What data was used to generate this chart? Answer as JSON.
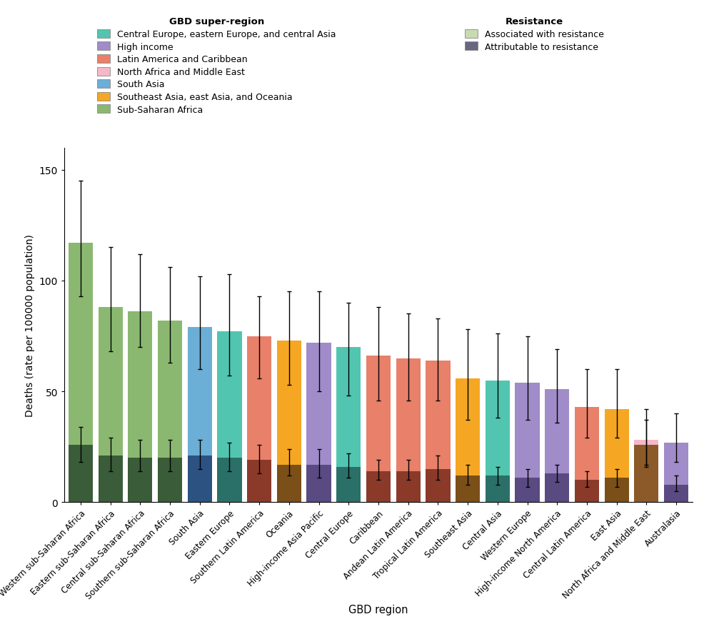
{
  "regions": [
    "Western sub-Saharan Africa",
    "Eastern sub-Saharan Africa",
    "Central sub-Saharan Africa",
    "Southern sub-Saharan Africa",
    "South Asia",
    "Eastern Europe",
    "Southern Latin America",
    "Oceania",
    "High-income Asia Pacific",
    "Central Europe",
    "Caribbean",
    "Andean Latin America",
    "Tropical Latin America",
    "Southeast Asia",
    "Central Asia",
    "Western Europe",
    "High-income North America",
    "Central Latin America",
    "East Asia",
    "North Africa and Middle East",
    "Australasia"
  ],
  "associated_values": [
    117,
    88,
    86,
    82,
    79,
    77,
    75,
    73,
    72,
    70,
    66,
    65,
    64,
    56,
    55,
    54,
    51,
    43,
    42,
    28,
    27
  ],
  "associated_lower": [
    93,
    68,
    70,
    63,
    60,
    57,
    56,
    53,
    50,
    48,
    46,
    46,
    46,
    37,
    38,
    37,
    36,
    29,
    29,
    16,
    18
  ],
  "associated_upper": [
    145,
    115,
    112,
    106,
    102,
    103,
    93,
    95,
    95,
    90,
    88,
    85,
    83,
    78,
    76,
    75,
    69,
    60,
    60,
    42,
    40
  ],
  "attributable_values": [
    26,
    21,
    20,
    20,
    21,
    20,
    19,
    17,
    17,
    16,
    14,
    14,
    15,
    12,
    12,
    11,
    13,
    10,
    11,
    26,
    8
  ],
  "attributable_lower": [
    18,
    14,
    14,
    14,
    15,
    14,
    13,
    12,
    11,
    11,
    10,
    10,
    10,
    8,
    8,
    7,
    9,
    7,
    7,
    17,
    5
  ],
  "attributable_upper": [
    34,
    29,
    28,
    28,
    28,
    27,
    26,
    24,
    24,
    22,
    19,
    19,
    21,
    17,
    16,
    15,
    17,
    14,
    15,
    37,
    12
  ],
  "super_region_colors": {
    "Sub-Saharan Africa": "#8ab870",
    "South Asia": "#6baed6",
    "Central Europe, eastern Europe, and central Asia": "#52c5b0",
    "Latin America and Caribbean": "#e8806a",
    "Southeast Asia, east Asia, and Oceania": "#f5a623",
    "High income": "#a08cc8",
    "North Africa and Middle East": "#f5b8c8"
  },
  "region_super_region": [
    "Sub-Saharan Africa",
    "Sub-Saharan Africa",
    "Sub-Saharan Africa",
    "Sub-Saharan Africa",
    "South Asia",
    "Central Europe, eastern Europe, and central Asia",
    "Latin America and Caribbean",
    "Southeast Asia, east Asia, and Oceania",
    "High income",
    "Central Europe, eastern Europe, and central Asia",
    "Latin America and Caribbean",
    "Latin America and Caribbean",
    "Latin America and Caribbean",
    "Southeast Asia, east Asia, and Oceania",
    "Central Europe, eastern Europe, and central Asia",
    "High income",
    "High income",
    "Latin America and Caribbean",
    "Southeast Asia, east Asia, and Oceania",
    "North Africa and Middle East",
    "High income"
  ],
  "attributable_dark_colors": {
    "Sub-Saharan Africa": "#3a5c38",
    "South Asia": "#2c5282",
    "Central Europe, eastern Europe, and central Asia": "#2a7068",
    "Latin America and Caribbean": "#8b3a2a",
    "Southeast Asia, east Asia, and Oceania": "#7a4f18",
    "High income": "#5a4a82",
    "North Africa and Middle East": "#8b5a28"
  },
  "associated_legend_color": "#c8dab0",
  "attributable_legend_color": "#666680",
  "xlabel": "GBD region",
  "ylabel": "Deaths (rate per 100000 population)",
  "ylim": [
    0,
    160
  ],
  "yticks": [
    0,
    50,
    100,
    150
  ],
  "super_region_legend_order": [
    "Central Europe, eastern Europe, and central Asia",
    "High income",
    "Latin America and Caribbean",
    "North Africa and Middle East",
    "South Asia",
    "Southeast Asia, east Asia, and Oceania",
    "Sub-Saharan Africa"
  ]
}
